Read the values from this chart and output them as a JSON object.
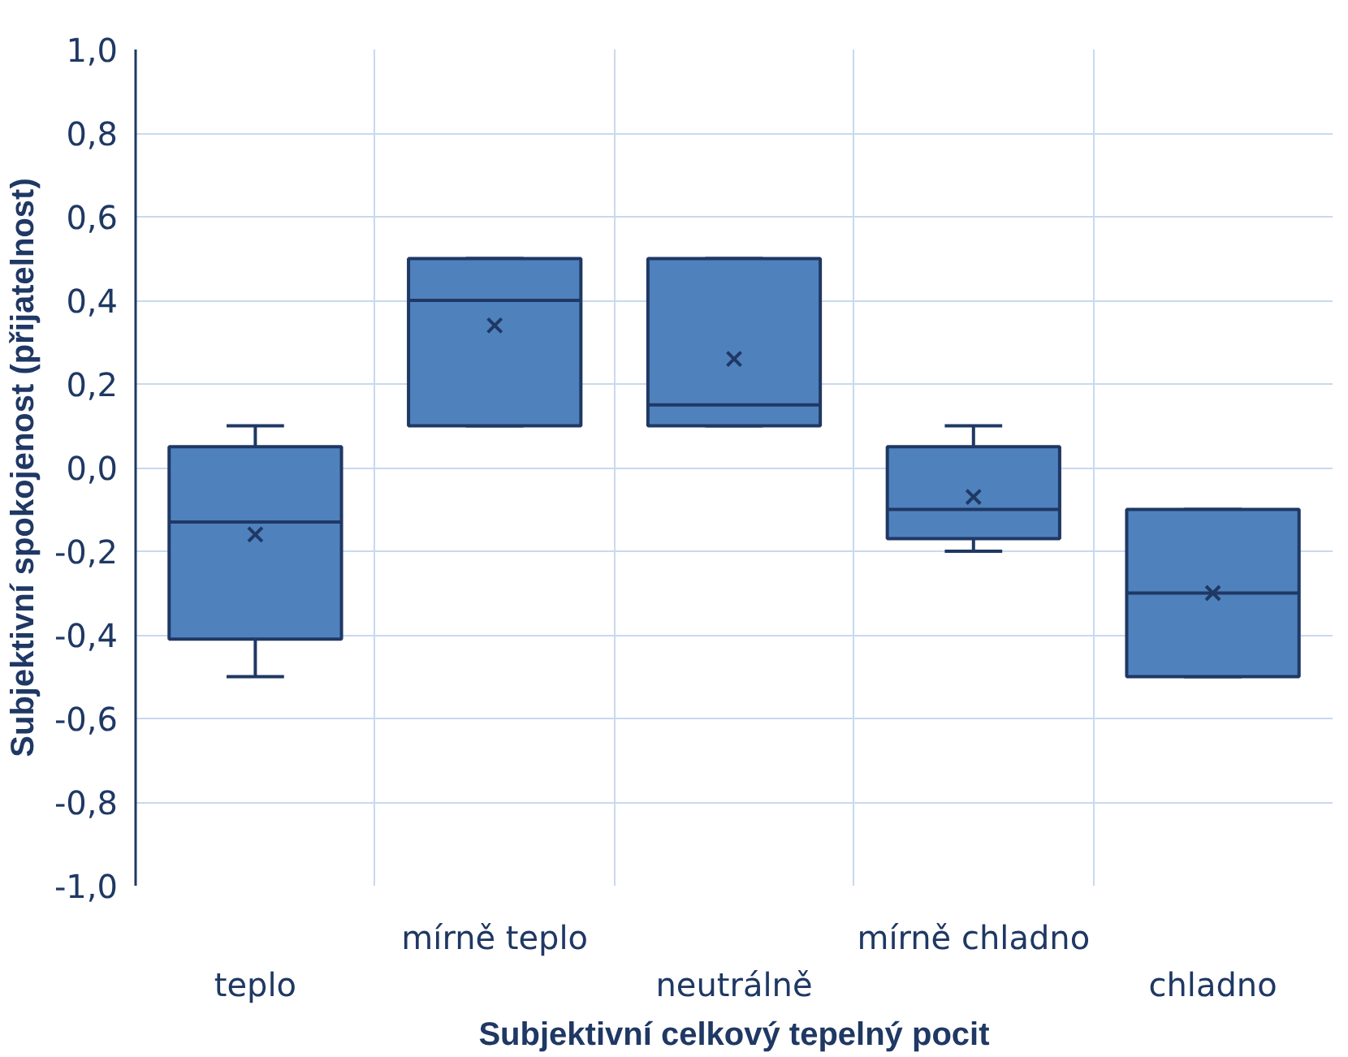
{
  "chart_data": {
    "type": "box",
    "xlabel": "Subjektivní celkový tepelný pocit",
    "ylabel": "Subjektivní spokojenost (přijatelnost)",
    "categories": [
      "teplo",
      "mírně teplo",
      "neutrálně",
      "mírně chladno",
      "chladno"
    ],
    "boxes": [
      {
        "low": -0.5,
        "q1": -0.41,
        "median": -0.13,
        "q3": 0.05,
        "high": 0.1,
        "mean": -0.16
      },
      {
        "low": 0.1,
        "q1": 0.1,
        "median": 0.4,
        "q3": 0.5,
        "high": 0.5,
        "mean": 0.34
      },
      {
        "low": 0.1,
        "q1": 0.1,
        "median": 0.15,
        "q3": 0.5,
        "high": 0.5,
        "mean": 0.26
      },
      {
        "low": -0.2,
        "q1": -0.17,
        "median": -0.1,
        "q3": 0.05,
        "high": 0.1,
        "mean": -0.07
      },
      {
        "low": -0.5,
        "q1": -0.5,
        "median": -0.3,
        "q3": -0.1,
        "high": -0.1,
        "mean": -0.3
      }
    ],
    "color": "#4f81bd",
    "ylim": [
      -1.0,
      1.0
    ],
    "yticks": [
      {
        "value": -1.0,
        "label": "-1,0"
      },
      {
        "value": -0.8,
        "label": "-0,8"
      },
      {
        "value": -0.6,
        "label": "-0,6"
      },
      {
        "value": -0.4,
        "label": "-0,4"
      },
      {
        "value": -0.2,
        "label": "-0,2"
      },
      {
        "value": 0.0,
        "label": "0,0"
      },
      {
        "value": 0.2,
        "label": "0,2"
      },
      {
        "value": 0.4,
        "label": "0,4"
      },
      {
        "value": 0.6,
        "label": "0,6"
      },
      {
        "value": 0.8,
        "label": "0,8"
      },
      {
        "value": 1.0,
        "label": "1,0"
      }
    ],
    "grid": true,
    "marker": "cross"
  }
}
